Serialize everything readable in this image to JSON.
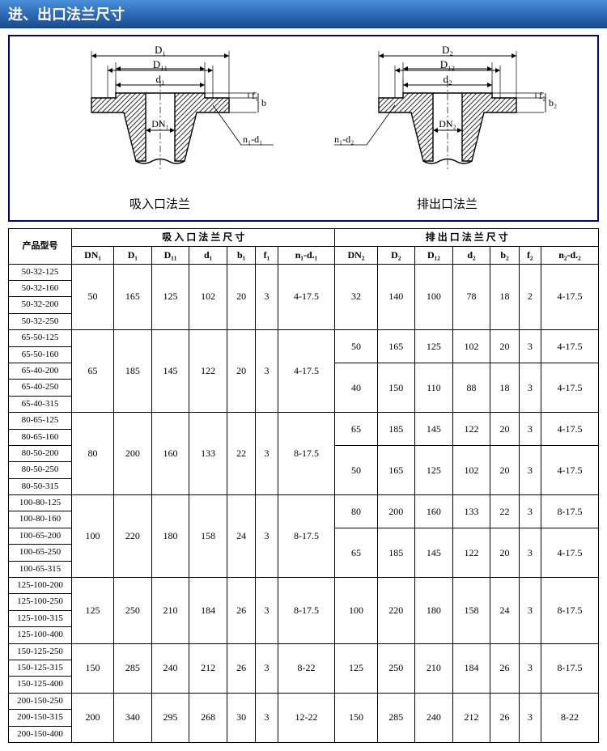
{
  "title": "进、出口法兰尺寸",
  "diagrams": {
    "left": {
      "caption": "吸入口法兰",
      "labels": {
        "D": "D₁",
        "D1": "D₁₁",
        "d": "d₁",
        "DN": "DN₁",
        "f": "f₁",
        "b": "b",
        "nd": "n₁-d₁"
      }
    },
    "right": {
      "caption": "排出口法兰",
      "labels": {
        "D": "D₂",
        "D1": "D₁₂",
        "d": "d₂",
        "DN": "DN₂",
        "f": "f₂",
        "b": "b₂",
        "nd": "n₁-d₂"
      }
    }
  },
  "table": {
    "header": {
      "model": "产品型号",
      "inlet": "吸 入 口 法 兰 尺 寸",
      "outlet": "排 出 口 法 兰 尺 寸",
      "cols_in": [
        "DN₁",
        "D₁",
        "D₁₁",
        "d₁",
        "b₁",
        "f₁",
        "n₁-d.₁"
      ],
      "cols_out": [
        "DN₂",
        "D₂",
        "D₁₂",
        "d₂",
        "b₂",
        "f₂",
        "n₂-d.₂"
      ]
    },
    "groups": [
      {
        "models": [
          "50-32-125",
          "50-32-160",
          "50-32-200",
          "50-32-250"
        ],
        "inlet": [
          "50",
          "165",
          "125",
          "102",
          "20",
          "3",
          "4-17.5"
        ],
        "outlets": [
          {
            "span": 4,
            "v": [
              "32",
              "140",
              "100",
              "78",
              "18",
              "2",
              "4-17.5"
            ]
          }
        ]
      },
      {
        "models": [
          "65-50-125",
          "65-50-160",
          "65-40-200",
          "65-40-250",
          "65-40-315"
        ],
        "inlet": [
          "65",
          "185",
          "145",
          "122",
          "20",
          "3",
          "4-17.5"
        ],
        "outlets": [
          {
            "span": 2,
            "v": [
              "50",
              "165",
              "125",
              "102",
              "20",
              "3",
              "4-17.5"
            ]
          },
          {
            "span": 3,
            "v": [
              "40",
              "150",
              "110",
              "88",
              "18",
              "3",
              "4-17.5"
            ]
          }
        ]
      },
      {
        "models": [
          "80-65-125",
          "80-65-160",
          "80-50-200",
          "80-50-250",
          "80-50-315"
        ],
        "inlet": [
          "80",
          "200",
          "160",
          "133",
          "22",
          "3",
          "8-17.5"
        ],
        "outlets": [
          {
            "span": 2,
            "v": [
              "65",
              "185",
              "145",
              "122",
              "20",
              "3",
              "4-17.5"
            ]
          },
          {
            "span": 3,
            "v": [
              "50",
              "165",
              "125",
              "102",
              "20",
              "3",
              "4-17.5"
            ]
          }
        ]
      },
      {
        "models": [
          "100-80-125",
          "100-80-160",
          "100-65-200",
          "100-65-250",
          "100-65-315"
        ],
        "inlet": [
          "100",
          "220",
          "180",
          "158",
          "24",
          "3",
          "8-17.5"
        ],
        "outlets": [
          {
            "span": 2,
            "v": [
              "80",
              "200",
              "160",
              "133",
              "22",
              "3",
              "8-17.5"
            ]
          },
          {
            "span": 3,
            "v": [
              "65",
              "185",
              "145",
              "122",
              "20",
              "3",
              "4-17.5"
            ]
          }
        ]
      },
      {
        "models": [
          "125-100-200",
          "125-100-250",
          "125-100-315",
          "125-100-400"
        ],
        "inlet": [
          "125",
          "250",
          "210",
          "184",
          "26",
          "3",
          "8-17.5"
        ],
        "outlets": [
          {
            "span": 4,
            "v": [
              "100",
              "220",
              "180",
              "158",
              "24",
              "3",
              "8-17.5"
            ]
          }
        ]
      },
      {
        "models": [
          "150-125-250",
          "150-125-315",
          "150-125-400"
        ],
        "inlet": [
          "150",
          "285",
          "240",
          "212",
          "26",
          "3",
          "8-22"
        ],
        "outlets": [
          {
            "span": 3,
            "v": [
              "125",
              "250",
              "210",
              "184",
              "26",
              "3",
              "8-17.5"
            ]
          }
        ]
      },
      {
        "models": [
          "200-150-250",
          "200-150-315",
          "200-150-400"
        ],
        "inlet": [
          "200",
          "340",
          "295",
          "268",
          "30",
          "3",
          "12-22"
        ],
        "outlets": [
          {
            "span": 3,
            "v": [
              "150",
              "285",
              "240",
              "212",
              "26",
              "3",
              "8-22"
            ]
          }
        ]
      }
    ]
  },
  "colors": {
    "title_bg_top": "#4a90d9",
    "title_bg_bottom": "#1a4d8f",
    "frame_border": "#000080",
    "table_border": "#000000",
    "text": "#000000",
    "hatch": "#404040"
  }
}
